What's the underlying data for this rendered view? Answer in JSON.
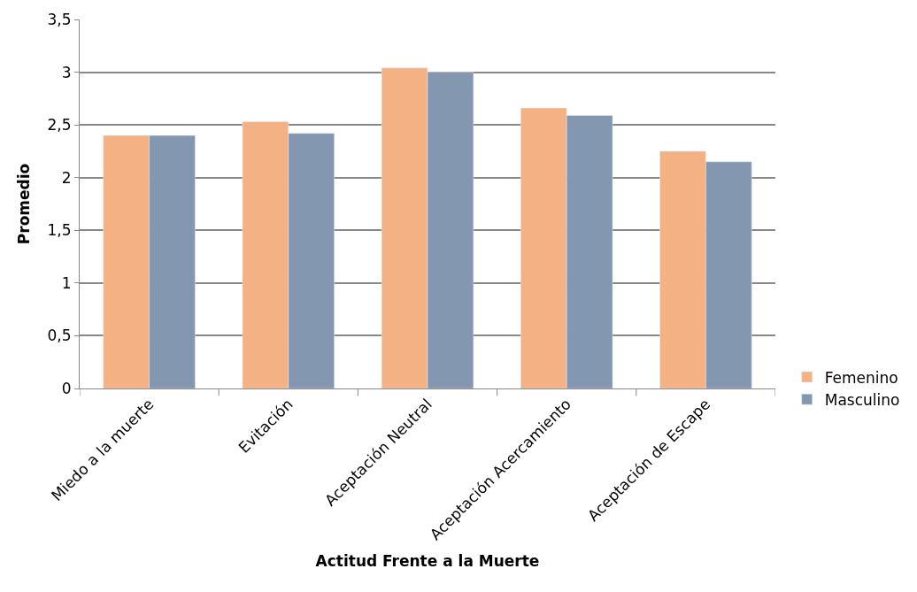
{
  "chart_data": {
    "type": "bar",
    "xlabel": "Actitud Frente a la Muerte",
    "ylabel": "Promedio",
    "categories": [
      "Miedo a la muerte",
      "Evitación",
      "Aceptación Neutral",
      "Aceptación Acercamiento",
      "Aceptación de Escape"
    ],
    "series": [
      {
        "name": "Femenino",
        "color": "#f4b183",
        "values": [
          2.4,
          2.53,
          3.04,
          2.66,
          2.25
        ]
      },
      {
        "name": "Masculino",
        "color": "#8497b0",
        "values": [
          2.4,
          2.42,
          3.0,
          2.59,
          2.15
        ]
      }
    ],
    "ylim": [
      0,
      3.5
    ],
    "yticks": [
      {
        "value": 0,
        "label": "0"
      },
      {
        "value": 0.5,
        "label": "0,5"
      },
      {
        "value": 1,
        "label": "1"
      },
      {
        "value": 1.5,
        "label": "1,5"
      },
      {
        "value": 2,
        "label": "2"
      },
      {
        "value": 2.5,
        "label": "2,5"
      },
      {
        "value": 3,
        "label": "3"
      },
      {
        "value": 3.5,
        "label": "3,5"
      }
    ],
    "grid": "y",
    "legend": "right"
  }
}
